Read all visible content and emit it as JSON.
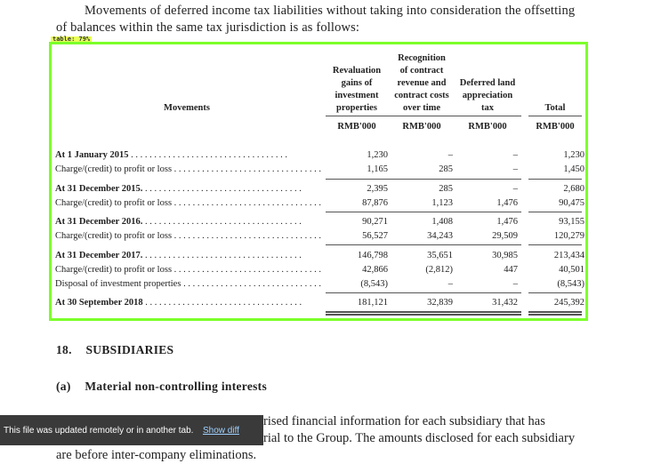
{
  "intro": {
    "line1": "Movements of deferred income tax liabilities without taking into consideration the offsetting",
    "line2": "of balances within the same tax jurisdiction is as follows:"
  },
  "table_tag": "table: 79%",
  "table": {
    "col_movements": "Movements",
    "columns": [
      [
        "Revaluation",
        "gains of",
        "investment",
        "properties"
      ],
      [
        "Recognition",
        "of contract",
        "revenue and",
        "contract costs",
        "over time"
      ],
      [
        "Deferred land",
        "appreciation",
        "tax"
      ],
      [
        "Total"
      ]
    ],
    "unit": "RMB'000",
    "rows": [
      {
        "label": "At 1 January 2015",
        "bold": true,
        "values": [
          "1,230",
          "–",
          "–",
          "1,230"
        ]
      },
      {
        "label": "Charge/(credit) to profit or loss",
        "bold": false,
        "values": [
          "1,165",
          "285",
          "–",
          "1,450"
        ]
      },
      {
        "label": "At 31 December 2015.",
        "bold": true,
        "values": [
          "2,395",
          "285",
          "–",
          "2,680"
        ]
      },
      {
        "label": "Charge/(credit) to profit or loss",
        "bold": false,
        "values": [
          "87,876",
          "1,123",
          "1,476",
          "90,475"
        ]
      },
      {
        "label": "At 31 December 2016.",
        "bold": true,
        "values": [
          "90,271",
          "1,408",
          "1,476",
          "93,155"
        ]
      },
      {
        "label": "Charge/(credit) to profit or loss",
        "bold": false,
        "values": [
          "56,527",
          "34,243",
          "29,509",
          "120,279"
        ]
      },
      {
        "label": "At 31 December 2017.",
        "bold": true,
        "values": [
          "146,798",
          "35,651",
          "30,985",
          "213,434"
        ]
      },
      {
        "label": "Charge/(credit) to profit or loss",
        "bold": false,
        "values": [
          "42,866",
          "(2,812)",
          "447",
          "40,501"
        ]
      },
      {
        "label": "Disposal of investment properties",
        "bold": false,
        "values": [
          "(8,543)",
          "–",
          "–",
          "(8,543)"
        ]
      },
      {
        "label": "At 30 September 2018",
        "bold": true,
        "values": [
          "181,121",
          "32,839",
          "31,432",
          "245,392"
        ]
      }
    ]
  },
  "section18": {
    "number": "18.",
    "title": "SUBSIDIARIES"
  },
  "subsection_a": {
    "label": "(a)",
    "title": "Material non-controlling interests"
  },
  "body": {
    "line1": "rised financial information for each subsidiary that has",
    "line2": "rial to the Group. The amounts disclosed for each subsidiary",
    "line3": "are before inter-company eliminations."
  },
  "toast": {
    "message": "This file was updated remotely or in another tab.",
    "link": "Show diff"
  }
}
